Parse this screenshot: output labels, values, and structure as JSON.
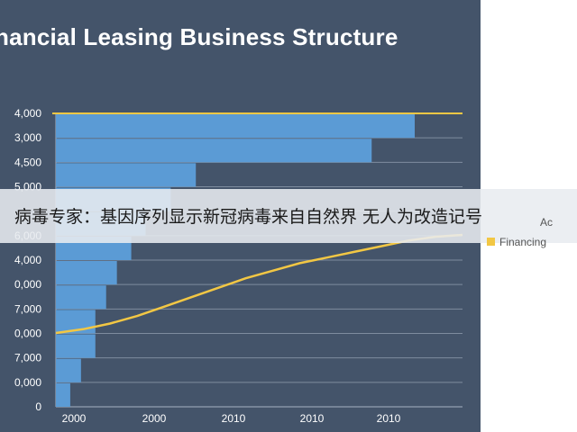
{
  "chart_data": {
    "type": "bar",
    "orientation": "horizontal",
    "title": "nancial Leasing Business Structure",
    "y_tick_labels": [
      "4,000",
      "3,000",
      "4,500",
      "5,000",
      "",
      "6,000",
      "4,000",
      "0,000",
      "7,000",
      "0,000",
      "7,000",
      "0,000",
      "0"
    ],
    "x_tick_labels": [
      "2000",
      "2000",
      "2010",
      "2010",
      "2010"
    ],
    "bar_values": [
      100,
      88,
      39,
      32,
      25,
      21,
      17,
      14,
      11,
      11,
      7,
      4
    ],
    "series": [
      {
        "name": "Financing",
        "type": "line",
        "color": "#f2c744",
        "values": [
          0,
          2,
          5,
          9,
          14,
          19,
          24,
          29,
          33,
          37,
          40,
          43,
          46,
          49,
          51,
          52
        ]
      }
    ],
    "legend": {
      "position": "right",
      "entries": [
        "Ac",
        "Financing"
      ]
    },
    "grid": true,
    "bar_color": "#5b9bd5",
    "top_line_color": "#f2c744"
  },
  "overlay": {
    "text": "病毒专家：基因序列显示新冠病毒来自自然界 无人为改造记号"
  },
  "colors": {
    "background": "#44546a",
    "bar": "#5b9bd5",
    "line": "#f2c744",
    "grid": "#a6b2c2"
  }
}
